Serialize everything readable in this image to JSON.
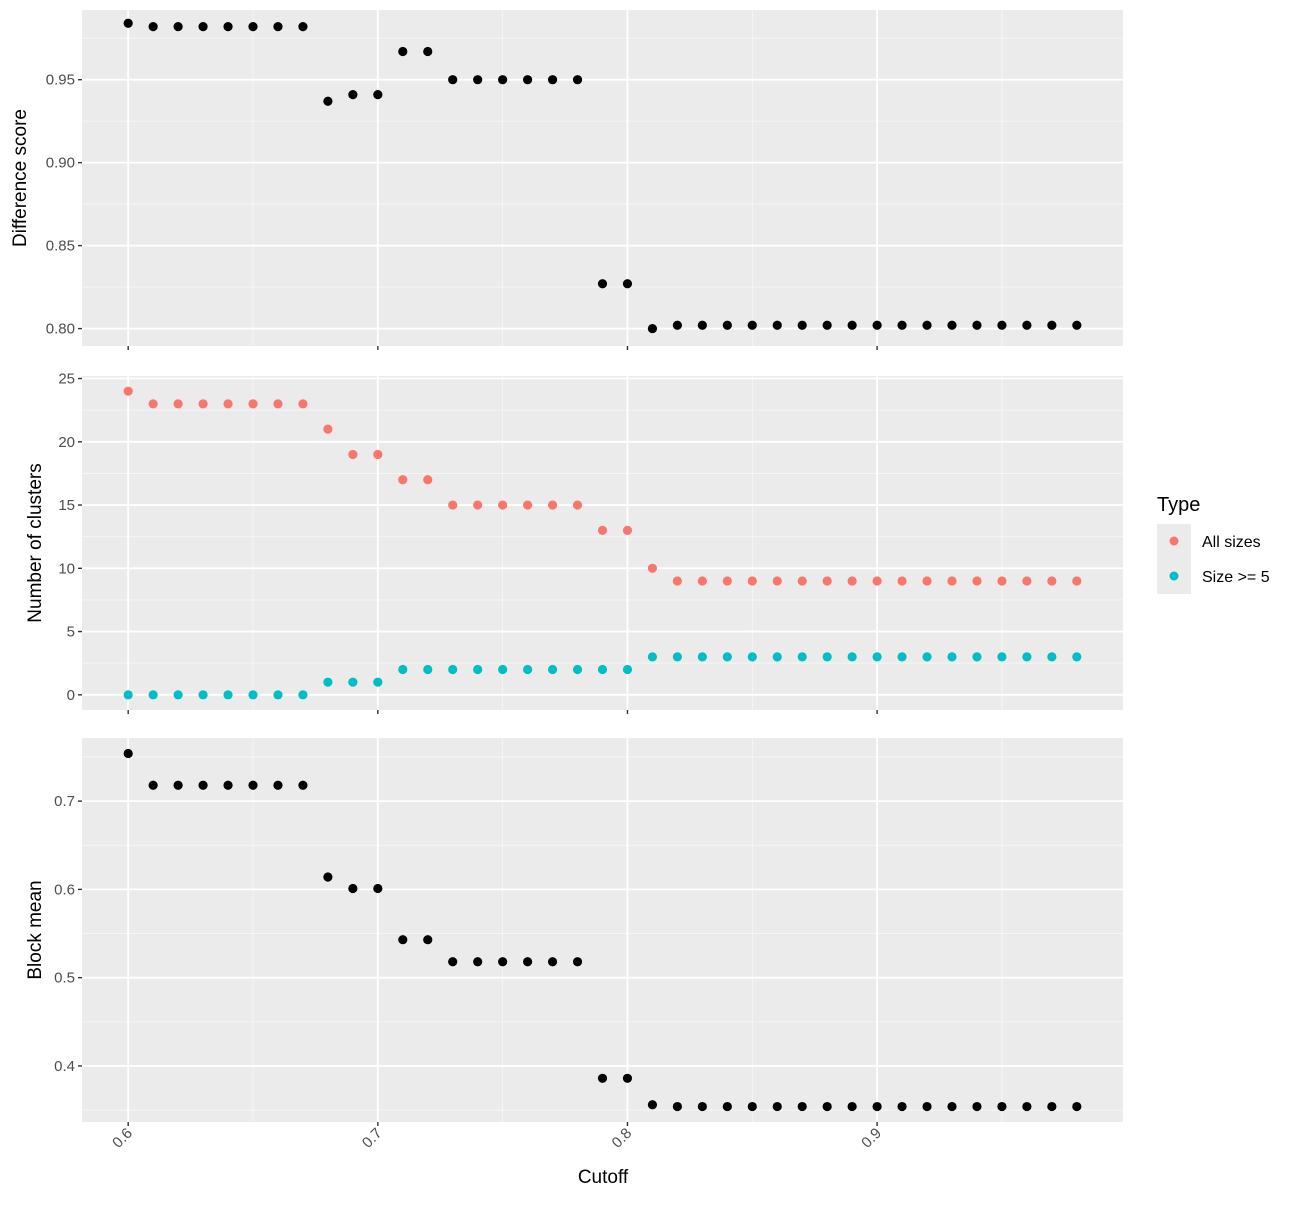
{
  "chart_data": {
    "type": "scatter",
    "xlabel": "Cutoff",
    "x_ticks": [
      "0.6",
      "0.7",
      "0.8",
      "0.9"
    ],
    "xlim": [
      0.5815,
      0.9985
    ],
    "x": [
      0.6,
      0.61,
      0.62,
      0.63,
      0.64,
      0.65,
      0.66,
      0.67,
      0.68,
      0.69,
      0.7,
      0.71,
      0.72,
      0.73,
      0.74,
      0.75,
      0.76,
      0.77,
      0.78,
      0.79,
      0.8,
      0.81,
      0.82,
      0.83,
      0.84,
      0.85,
      0.86,
      0.87,
      0.88,
      0.89,
      0.9,
      0.91,
      0.92,
      0.93,
      0.94,
      0.95,
      0.96,
      0.97,
      0.98
    ],
    "grid": true,
    "panels": [
      {
        "ylabel": "Difference score",
        "ylim": [
          0.7895,
          0.992
        ],
        "y_ticks": [
          "0.80",
          "0.85",
          "0.90",
          "0.95"
        ],
        "series": [
          {
            "color": "#000000",
            "values": [
              0.984,
              0.982,
              0.982,
              0.982,
              0.982,
              0.982,
              0.982,
              0.982,
              0.937,
              0.941,
              0.941,
              0.967,
              0.967,
              0.95,
              0.95,
              0.95,
              0.95,
              0.95,
              0.95,
              0.827,
              0.827,
              0.8,
              0.802,
              0.802,
              0.802,
              0.802,
              0.802,
              0.802,
              0.802,
              0.802,
              0.802,
              0.802,
              0.802,
              0.802,
              0.802,
              0.802,
              0.802,
              0.802,
              0.802
            ]
          }
        ]
      },
      {
        "ylabel": "Number of clusters",
        "ylim": [
          -1.2,
          25.2
        ],
        "y_ticks": [
          "0",
          "5",
          "10",
          "15",
          "20",
          "25"
        ],
        "series": [
          {
            "name": "All sizes",
            "color": "#F8766D",
            "values": [
              24,
              23,
              23,
              23,
              23,
              23,
              23,
              23,
              21,
              19,
              19,
              17,
              17,
              15,
              15,
              15,
              15,
              15,
              15,
              13,
              13,
              10,
              9,
              9,
              9,
              9,
              9,
              9,
              9,
              9,
              9,
              9,
              9,
              9,
              9,
              9,
              9,
              9,
              9
            ]
          },
          {
            "name": "Size >= 5",
            "color": "#00BFC4",
            "values": [
              0,
              0,
              0,
              0,
              0,
              0,
              0,
              0,
              1,
              1,
              1,
              2,
              2,
              2,
              2,
              2,
              2,
              2,
              2,
              2,
              2,
              3,
              3,
              3,
              3,
              3,
              3,
              3,
              3,
              3,
              3,
              3,
              3,
              3,
              3,
              3,
              3,
              3,
              3
            ]
          }
        ]
      },
      {
        "ylabel": "Block mean",
        "ylim": [
          0.3365,
          0.7715
        ],
        "y_ticks": [
          "0.4",
          "0.5",
          "0.6",
          "0.7"
        ],
        "series": [
          {
            "color": "#000000",
            "values": [
              0.754,
              0.718,
              0.718,
              0.718,
              0.718,
              0.718,
              0.718,
              0.718,
              0.614,
              0.601,
              0.601,
              0.543,
              0.543,
              0.518,
              0.518,
              0.518,
              0.518,
              0.518,
              0.518,
              0.386,
              0.386,
              0.356,
              0.354,
              0.354,
              0.354,
              0.354,
              0.354,
              0.354,
              0.354,
              0.354,
              0.354,
              0.354,
              0.354,
              0.354,
              0.354,
              0.354,
              0.354,
              0.354,
              0.354
            ]
          }
        ]
      }
    ],
    "legend": {
      "title": "Type",
      "position": "right",
      "entries": [
        {
          "label": "All sizes",
          "color": "#F8766D"
        },
        {
          "label": "Size >= 5",
          "color": "#00BFC4"
        }
      ]
    }
  }
}
